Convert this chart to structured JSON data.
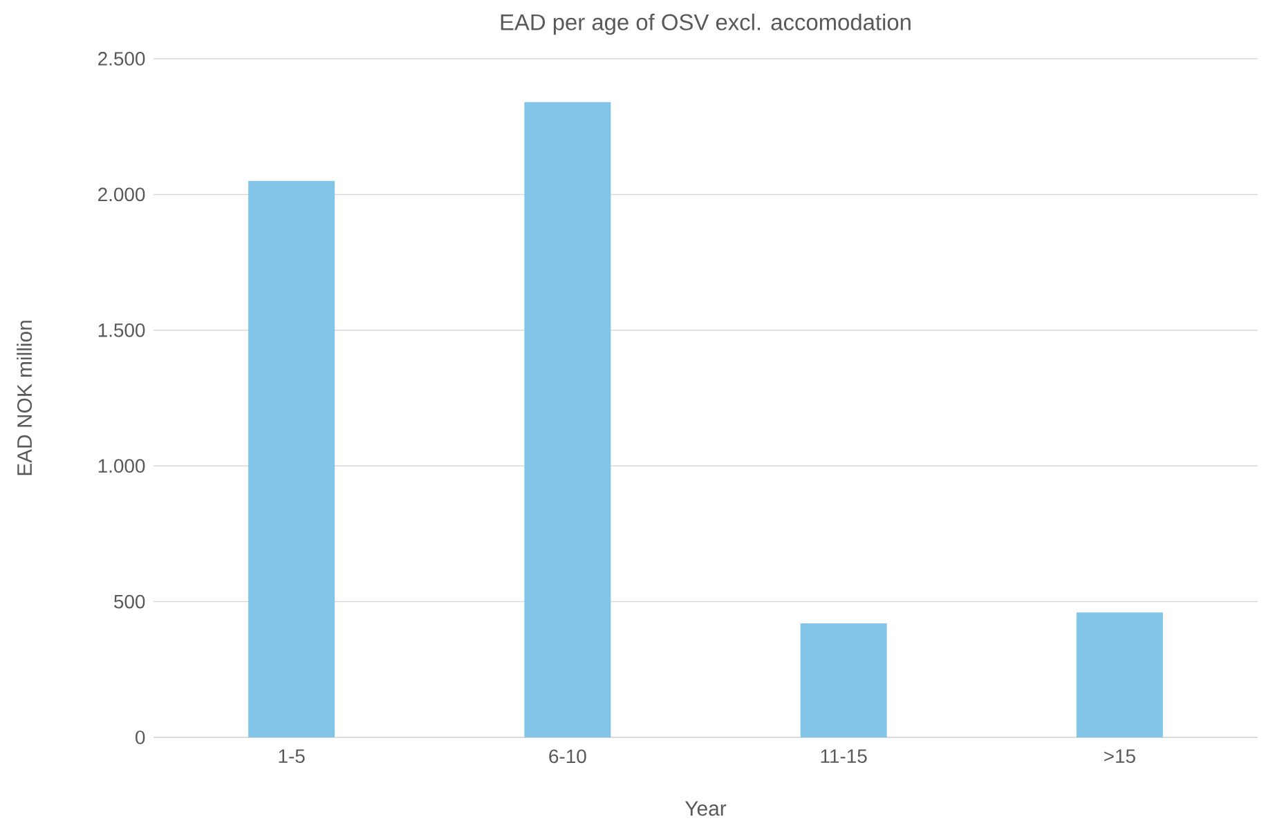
{
  "chart_data": {
    "type": "bar",
    "title": "EAD per age of OSV excl. accomodation",
    "xlabel": "Year",
    "ylabel": "EAD NOK million",
    "categories": [
      "1-5",
      "6-10",
      "11-15",
      ">15"
    ],
    "values": [
      2050,
      2340,
      420,
      460
    ],
    "color": "#82c5e8",
    "ylim": [
      0,
      2500
    ],
    "yticks": [
      {
        "value": 0,
        "label": "0"
      },
      {
        "value": 500,
        "label": "500"
      },
      {
        "value": 1000,
        "label": "1.000"
      },
      {
        "value": 1500,
        "label": "1.500"
      },
      {
        "value": 2000,
        "label": "2.000"
      },
      {
        "value": 2500,
        "label": "2.500"
      }
    ],
    "grid": "y"
  }
}
